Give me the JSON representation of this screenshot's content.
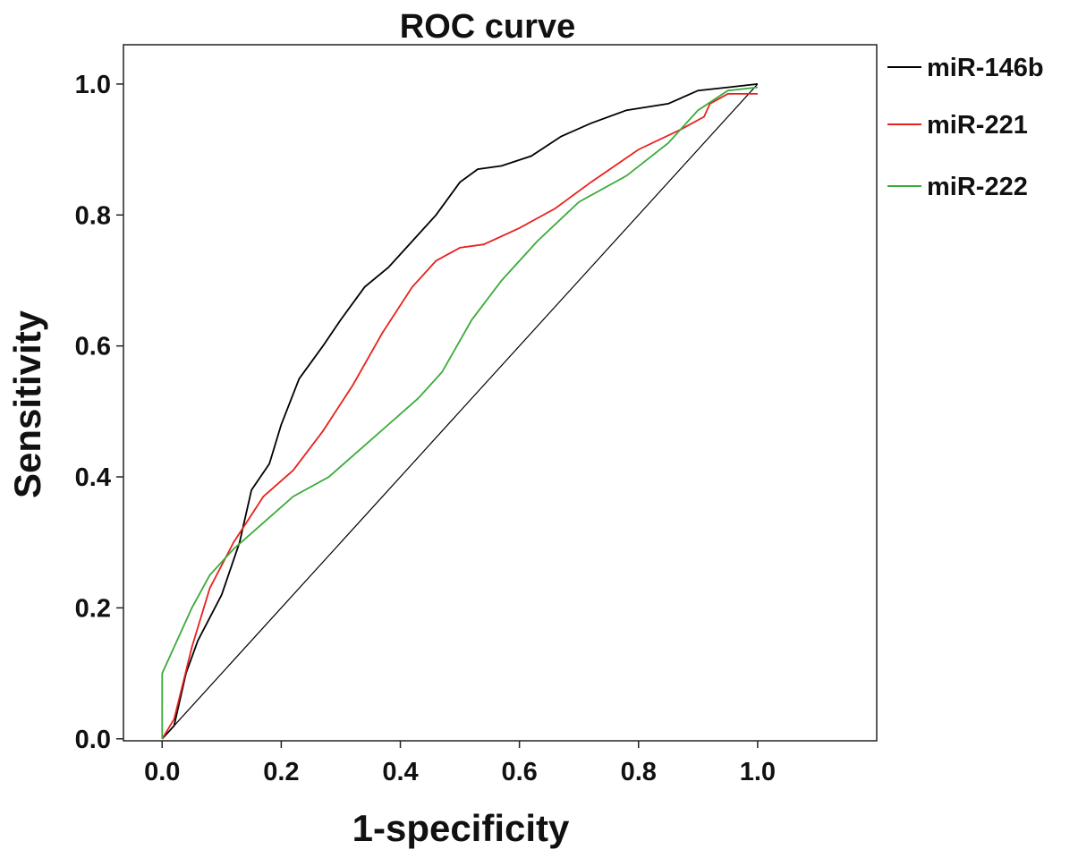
{
  "chart_data": {
    "type": "line",
    "title": "ROC curve",
    "xlabel": "1-specificity",
    "ylabel": "Sensitivity",
    "xlim": [
      -0.065,
      1.2
    ],
    "ylim": [
      -0.003,
      1.06
    ],
    "xticks": [
      "0.0",
      "0.2",
      "0.4",
      "0.6",
      "0.8",
      "1.0"
    ],
    "yticks": [
      "0.0",
      "0.2",
      "0.4",
      "0.6",
      "0.8",
      "1.0"
    ],
    "grid": false,
    "legend_position": "right-outside",
    "reference_line": {
      "x": [
        0,
        1
      ],
      "y": [
        0,
        1
      ],
      "color": "#000000"
    },
    "series": [
      {
        "name": "miR-146b",
        "color": "#000000",
        "x": [
          0,
          0.02,
          0.04,
          0.06,
          0.1,
          0.13,
          0.15,
          0.18,
          0.2,
          0.23,
          0.27,
          0.3,
          0.34,
          0.38,
          0.42,
          0.46,
          0.5,
          0.53,
          0.57,
          0.62,
          0.67,
          0.72,
          0.78,
          0.85,
          0.9,
          0.95,
          1.0
        ],
        "y": [
          0,
          0.02,
          0.1,
          0.15,
          0.22,
          0.3,
          0.38,
          0.42,
          0.48,
          0.55,
          0.6,
          0.64,
          0.69,
          0.72,
          0.76,
          0.8,
          0.85,
          0.87,
          0.875,
          0.89,
          0.92,
          0.94,
          0.96,
          0.97,
          0.99,
          0.995,
          1.0
        ]
      },
      {
        "name": "miR-221",
        "color": "#e8211e",
        "x": [
          0,
          0.02,
          0.05,
          0.08,
          0.12,
          0.17,
          0.22,
          0.27,
          0.32,
          0.37,
          0.42,
          0.46,
          0.5,
          0.54,
          0.6,
          0.66,
          0.72,
          0.8,
          0.87,
          0.91,
          0.92,
          0.95,
          1.0
        ],
        "y": [
          0,
          0.03,
          0.14,
          0.23,
          0.3,
          0.37,
          0.41,
          0.47,
          0.54,
          0.62,
          0.69,
          0.73,
          0.75,
          0.755,
          0.78,
          0.81,
          0.85,
          0.9,
          0.93,
          0.95,
          0.97,
          0.985,
          0.985
        ]
      },
      {
        "name": "miR-222",
        "color": "#3aab3a",
        "x": [
          0,
          0,
          0.02,
          0.05,
          0.08,
          0.12,
          0.17,
          0.22,
          0.28,
          0.33,
          0.38,
          0.43,
          0.47,
          0.52,
          0.57,
          0.63,
          0.7,
          0.78,
          0.85,
          0.9,
          0.95,
          1.0
        ],
        "y": [
          0,
          0.1,
          0.14,
          0.2,
          0.25,
          0.29,
          0.33,
          0.37,
          0.4,
          0.44,
          0.48,
          0.52,
          0.56,
          0.64,
          0.7,
          0.76,
          0.82,
          0.86,
          0.91,
          0.96,
          0.99,
          0.995
        ]
      }
    ]
  }
}
